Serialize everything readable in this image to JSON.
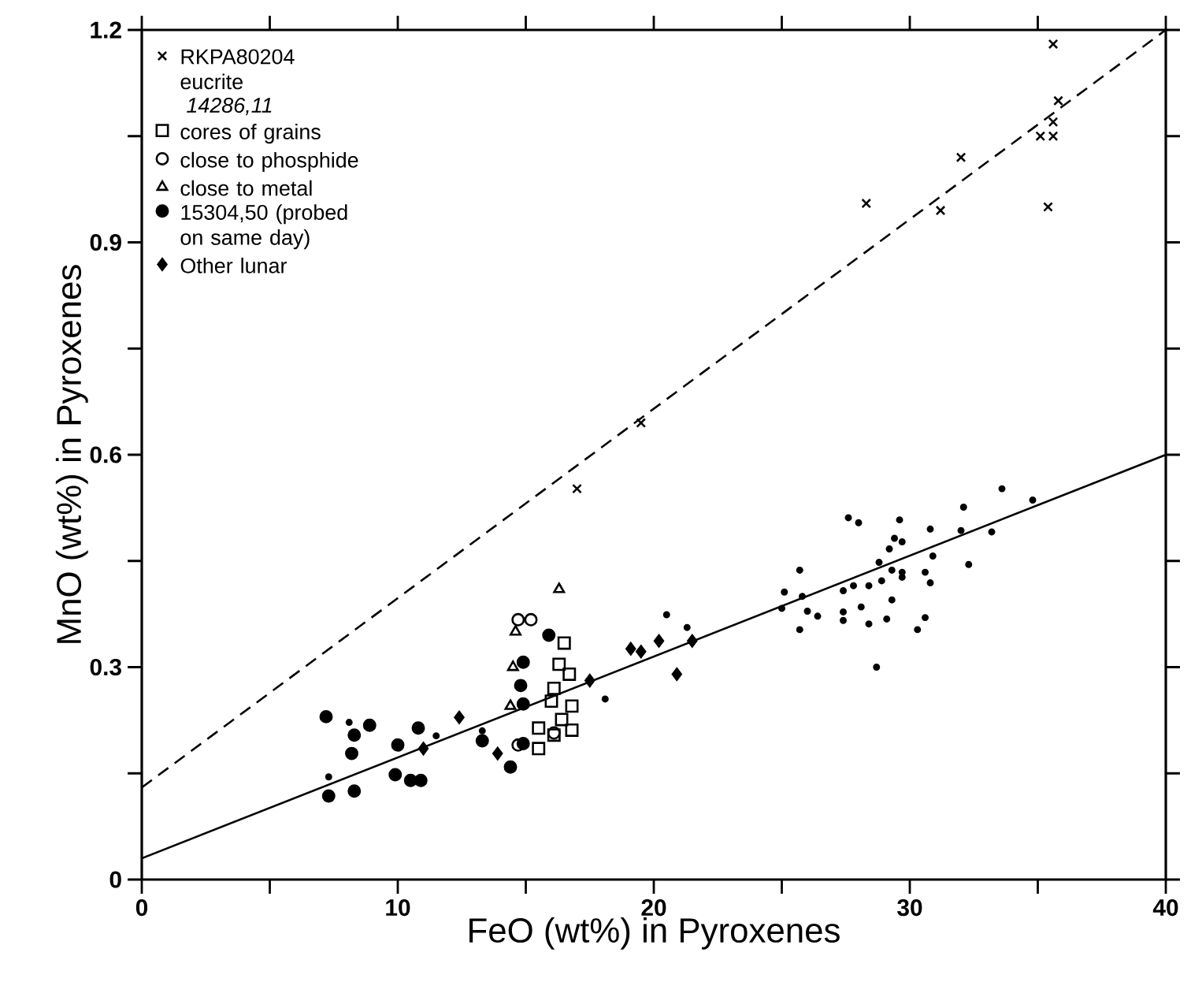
{
  "chart_data": {
    "type": "scatter",
    "xlabel": "FeO (wt%) in Pyroxenes",
    "ylabel": "MnO (wt%) in Pyroxenes",
    "xlim": [
      0,
      40
    ],
    "ylim": [
      0,
      1.2
    ],
    "xticks": [
      0,
      {
        "value": 5,
        "label": null
      },
      10,
      {
        "value": 15,
        "label": null
      },
      20,
      {
        "value": 25,
        "label": null
      },
      30,
      {
        "value": 35,
        "label": null
      },
      40
    ],
    "yticks": [
      0,
      {
        "value": 0.15,
        "label": null
      },
      0.3,
      {
        "value": 0.45,
        "label": null
      },
      0.6,
      {
        "value": 0.75,
        "label": null
      },
      0.9,
      {
        "value": 1.05,
        "label": null
      },
      1.2
    ],
    "legend": "top left",
    "annotations": [
      "14286,11"
    ],
    "series": [
      {
        "name": "RKPA80204 eucrite",
        "color": "#000000",
        "marker": "cross",
        "x": [
          35.6,
          35.8,
          35.1,
          35.6,
          35.6,
          32.0,
          28.3,
          31.2,
          35.4,
          19.5,
          17.0
        ],
        "values": [
          1.18,
          1.1,
          1.05,
          1.05,
          1.07,
          1.02,
          0.955,
          0.945,
          0.95,
          0.645,
          0.552
        ]
      },
      {
        "name": "cores of grains",
        "color": "#000000",
        "marker": "square",
        "x": [
          16.5,
          16.3,
          16.7,
          16.1,
          16.0,
          16.8,
          15.5,
          16.1,
          16.8,
          15.5,
          16.4
        ],
        "values": [
          0.334,
          0.304,
          0.29,
          0.27,
          0.252,
          0.245,
          0.214,
          0.204,
          0.211,
          0.185,
          0.226
        ]
      },
      {
        "name": "close to phosphide",
        "color": "#000000",
        "marker": "circle",
        "x": [
          14.7,
          15.2,
          14.7,
          16.1
        ],
        "values": [
          0.367,
          0.367,
          0.19,
          0.207
        ]
      },
      {
        "name": "close to metal",
        "color": "#000000",
        "marker": "triangle",
        "x": [
          16.3,
          14.6,
          14.5,
          14.4
        ],
        "values": [
          0.41,
          0.35,
          0.3,
          0.245
        ]
      },
      {
        "name": "15304,50 (probed on same day)",
        "color": "#000000",
        "marker": "circle",
        "x": [
          7.2,
          7.3,
          8.3,
          8.3,
          8.2,
          8.9,
          10.0,
          9.9,
          10.5,
          10.9,
          10.8,
          13.3,
          14.4,
          14.9,
          14.8,
          14.9,
          15.9,
          14.9
        ],
        "values": [
          0.23,
          0.118,
          0.204,
          0.125,
          0.178,
          0.218,
          0.19,
          0.148,
          0.14,
          0.14,
          0.214,
          0.196,
          0.159,
          0.307,
          0.274,
          0.248,
          0.345,
          0.192
        ]
      },
      {
        "color": "#000000",
        "marker": "circle",
        "x": [
          27.6,
          28.0,
          29.6,
          30.8,
          32.1,
          33.6,
          34.8,
          33.2,
          32.0,
          29.4,
          29.7,
          29.2,
          28.8,
          30.9,
          25.7,
          25.1,
          25.8,
          25.0,
          26.0,
          26.4,
          25.7,
          27.4,
          27.8,
          28.4,
          28.9,
          29.3,
          29.7,
          29.7,
          30.6,
          30.8,
          27.4,
          27.4,
          28.1,
          28.4,
          29.1,
          29.3,
          30.6,
          30.3,
          32.3,
          28.7,
          21.3,
          8.1,
          7.3,
          20.5,
          18.1,
          11.5,
          13.3
        ],
        "values": [
          0.511,
          0.504,
          0.508,
          0.495,
          0.526,
          0.552,
          0.536,
          0.491,
          0.493,
          0.482,
          0.477,
          0.467,
          0.448,
          0.457,
          0.437,
          0.406,
          0.4,
          0.383,
          0.379,
          0.372,
          0.353,
          0.408,
          0.415,
          0.415,
          0.422,
          0.437,
          0.434,
          0.427,
          0.434,
          0.419,
          0.378,
          0.366,
          0.385,
          0.361,
          0.368,
          0.395,
          0.37,
          0.353,
          0.445,
          0.3,
          0.356,
          0.222,
          0.145,
          0.374,
          0.255,
          0.203,
          0.21
        ]
      },
      {
        "name": "Other lunar",
        "color": "#000000",
        "marker": "diamond",
        "x": [
          12.4,
          13.9,
          17.5,
          19.1,
          19.5,
          20.2,
          20.9,
          21.5,
          11.0
        ],
        "values": [
          0.229,
          0.178,
          0.281,
          0.326,
          0.322,
          0.337,
          0.29,
          0.337,
          0.185
        ]
      },
      {
        "type": "line",
        "color": "#000000",
        "line_style": "solid",
        "x": [
          0,
          40
        ],
        "values": [
          0.03,
          0.6
        ]
      },
      {
        "type": "line",
        "color": "#000000",
        "line_style": "dashed",
        "x": [
          0,
          40
        ],
        "values": [
          0.13,
          1.2
        ]
      }
    ]
  }
}
